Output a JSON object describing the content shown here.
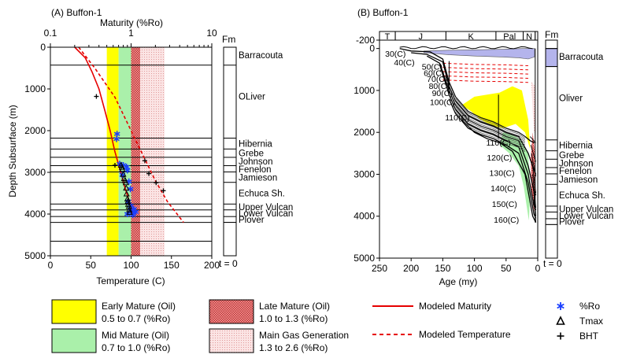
{
  "panel_a": {
    "title": "(A) Buffon-1",
    "top_axis_title": "Maturity  (%Ro)",
    "top_ticks": [
      {
        "label": "0.1",
        "value": 0.1
      },
      {
        "label": "1",
        "value": 1
      },
      {
        "label": "10",
        "value": 10
      }
    ],
    "bottom_axis_title": "Temperature (C)",
    "bottom_ticks": [
      0,
      50,
      100,
      150,
      200
    ],
    "y_axis_title": "Depth Subsurface (m)",
    "y_ticks": [
      0,
      1000,
      2000,
      3000,
      4000,
      5000
    ],
    "fm_header": "Fm",
    "t_label": "t = 0"
  },
  "panel_b": {
    "title": "(B) Buffon-1",
    "x_axis_title": "Age (my)",
    "x_ticks": [
      250,
      200,
      150,
      100,
      50,
      0
    ],
    "y_ticks": [
      -200,
      0,
      1000,
      2000,
      3000,
      4000,
      5000
    ],
    "periods": [
      {
        "label": "T",
        "from": 250,
        "to": 225
      },
      {
        "label": "J",
        "from": 225,
        "to": 145
      },
      {
        "label": "K",
        "from": 145,
        "to": 66
      },
      {
        "label": "Pal",
        "from": 66,
        "to": 23
      },
      {
        "label": "N",
        "from": 23,
        "to": 4
      }
    ],
    "horizon_labels": [
      {
        "label": "30(C)",
        "age": 206,
        "depth": 120,
        "side": "left"
      },
      {
        "label": "40(C)",
        "age": 192,
        "depth": 330,
        "side": "left"
      },
      {
        "label": "50(C)",
        "age": 148,
        "depth": 430,
        "side": "left"
      },
      {
        "label": "60(C)",
        "age": 145,
        "depth": 580,
        "side": "left"
      },
      {
        "label": "70(C)",
        "age": 140,
        "depth": 720,
        "side": "left"
      },
      {
        "label": "80(C)",
        "age": 137,
        "depth": 890,
        "side": "left"
      },
      {
        "label": "90(C)",
        "age": 132,
        "depth": 1060,
        "side": "left"
      },
      {
        "label": "100(C)",
        "age": 128,
        "depth": 1270,
        "side": "left"
      },
      {
        "label": "110(C)",
        "age": 105,
        "depth": 1640,
        "side": "left"
      },
      {
        "label": "110(C)",
        "age": 40,
        "depth": 2240,
        "side": "left"
      },
      {
        "label": "120(C)",
        "age": 38,
        "depth": 2600,
        "side": "left"
      },
      {
        "label": "130(C)",
        "age": 34,
        "depth": 2960,
        "side": "left"
      },
      {
        "label": "140(C)",
        "age": 32,
        "depth": 3330,
        "side": "left"
      },
      {
        "label": "150(C)",
        "age": 30,
        "depth": 3700,
        "side": "left"
      },
      {
        "label": "160(C)",
        "age": 27,
        "depth": 4080,
        "side": "left"
      }
    ],
    "fm_header": "Fm",
    "t_label": "t = 0"
  },
  "formations": [
    {
      "name": "Barracouta",
      "top": 0,
      "base": 430,
      "label_depth": 190
    },
    {
      "name": "OLiver",
      "panel_b_name": "Oliver",
      "top": 430,
      "base": 2180,
      "label_depth": 1180
    },
    {
      "name": "Hibernia",
      "top": 2180,
      "base": 2440,
      "label_depth": 2310
    },
    {
      "name": "Grebe",
      "top": 2440,
      "base": 2640,
      "label_depth": 2540
    },
    {
      "name": "Johnson",
      "top": 2640,
      "base": 2840,
      "label_depth": 2740
    },
    {
      "name": "Fenelon",
      "top": 2840,
      "base": 2990,
      "label_depth": 2920
    },
    {
      "name": "Jamieson",
      "top": 2990,
      "base": 3240,
      "label_depth": 3120
    },
    {
      "name": "Echuca Sh.",
      "top": 3240,
      "base": 3760,
      "label_depth": 3500
    },
    {
      "name": "Upper Vulcan",
      "top": 3760,
      "base": 3900,
      "label_depth": 3830
    },
    {
      "name": "Lower Vulcan",
      "top": 3900,
      "base": 4060,
      "label_depth": 3985
    },
    {
      "name": "Plover",
      "top": 4060,
      "base": 4200,
      "label_depth": 4130
    }
  ],
  "chart_data": [
    {
      "type": "scatter",
      "title": "(A) Buffon-1",
      "xlabel": "Temperature (C)",
      "x2label": "Maturity  (%Ro)",
      "ylabel": "Depth Subsurface (m)",
      "xlim": [
        0,
        200
      ],
      "x2lim": [
        0.1,
        10
      ],
      "x2scale": "log",
      "ylim": [
        5000,
        0
      ],
      "maturity_windows": [
        {
          "name": "Early Mature (Oil)",
          "from": 0.5,
          "to": 0.7,
          "color": "#ffff00"
        },
        {
          "name": "Mid Mature (Oil)",
          "from": 0.7,
          "to": 1.0,
          "color": "#aaf0aa"
        },
        {
          "name": "Late Mature (Oil)",
          "from": 1.0,
          "to": 1.3,
          "color": "#e88080"
        },
        {
          "name": "Main Gas Generation",
          "from": 1.3,
          "to": 2.6,
          "color": "#f7cccc"
        }
      ],
      "series": [
        {
          "name": "Modeled Maturity",
          "style": "solid",
          "color": "#e60000",
          "axis": "maturity",
          "points": [
            [
              0.2,
              0
            ],
            [
              0.27,
              250
            ],
            [
              0.33,
              600
            ],
            [
              0.4,
              1000
            ],
            [
              0.47,
              1500
            ],
            [
              0.55,
              2000
            ],
            [
              0.63,
              2500
            ],
            [
              0.72,
              2900
            ],
            [
              0.82,
              3300
            ],
            [
              0.95,
              3700
            ],
            [
              1.05,
              4000
            ]
          ]
        },
        {
          "name": "Modeled Temperature",
          "style": "dashed",
          "color": "#e60000",
          "axis": "temperature",
          "points": [
            [
              35,
              0
            ],
            [
              55,
              500
            ],
            [
              80,
              1200
            ],
            [
              100,
              2000
            ],
            [
              115,
              2600
            ],
            [
              130,
              3200
            ],
            [
              145,
              3700
            ],
            [
              165,
              4200
            ]
          ]
        },
        {
          "name": "%Ro",
          "marker": "asterisk",
          "color": "#1a3fff",
          "axis": "maturity",
          "points": [
            [
              0.67,
              2080
            ],
            [
              0.66,
              2200
            ],
            [
              0.72,
              2800
            ],
            [
              0.8,
              2830
            ],
            [
              0.88,
              2870
            ],
            [
              0.9,
              2950
            ],
            [
              0.78,
              3060
            ],
            [
              0.94,
              3220
            ],
            [
              0.98,
              3400
            ],
            [
              0.92,
              3700
            ],
            [
              0.99,
              3800
            ],
            [
              1.08,
              3880
            ],
            [
              1.0,
              3920
            ],
            [
              0.9,
              4000
            ],
            [
              1.05,
              4020
            ],
            [
              1.14,
              3950
            ]
          ]
        },
        {
          "name": "Tmax",
          "marker": "triangle",
          "color": "#000000",
          "axis": "maturity",
          "points": [
            [
              0.75,
              2830
            ],
            [
              0.77,
              2880
            ],
            [
              0.78,
              2930
            ],
            [
              0.8,
              3050
            ],
            [
              0.82,
              3150
            ],
            [
              0.84,
              3200
            ],
            [
              0.86,
              3250
            ],
            [
              0.87,
              3380
            ],
            [
              0.88,
              3520
            ],
            [
              0.9,
              3640
            ],
            [
              0.91,
              3700
            ],
            [
              0.92,
              3770
            ],
            [
              0.94,
              3820
            ],
            [
              0.95,
              3900
            ],
            [
              0.96,
              3960
            ]
          ]
        },
        {
          "name": "BHT",
          "marker": "plus",
          "color": "#000000",
          "axis": "temperature",
          "points": [
            [
              57,
              1180
            ],
            [
              80,
              2830
            ],
            [
              117,
              2720
            ],
            [
              122,
              3030
            ],
            [
              131,
              3250
            ],
            [
              140,
              3440
            ]
          ]
        }
      ]
    },
    {
      "type": "area",
      "title": "(B) Buffon-1",
      "xlabel": "Age (my)",
      "xlim": [
        250,
        0
      ],
      "ylim": [
        5000,
        -200
      ],
      "series": [
        {
          "name": "Early Mature (Oil)",
          "color": "#ffff00",
          "polygon": [
            [
              100,
              1150
            ],
            [
              80,
              1100
            ],
            [
              60,
              1050
            ],
            [
              40,
              900
            ],
            [
              25,
              1000
            ],
            [
              15,
              1700
            ],
            [
              12,
              2400
            ],
            [
              20,
              2000
            ],
            [
              35,
              1800
            ],
            [
              55,
              1900
            ],
            [
              70,
              1850
            ],
            [
              90,
              1700
            ],
            [
              105,
              1500
            ],
            [
              120,
              1350
            ]
          ]
        },
        {
          "name": "Mid Mature (Oil)",
          "color": "#aaf0aa",
          "polygon": [
            [
              55,
              2000
            ],
            [
              40,
              2050
            ],
            [
              25,
              2200
            ],
            [
              15,
              2500
            ],
            [
              12,
              3500
            ],
            [
              14,
              4100
            ],
            [
              22,
              3300
            ],
            [
              30,
              2800
            ],
            [
              45,
              2500
            ],
            [
              60,
              2300
            ]
          ]
        },
        {
          "name": "Late Mature (Oil)",
          "color": "#e88080",
          "polygon": [
            [
              8,
              2000
            ],
            [
              5,
              2400
            ],
            [
              4,
              3600
            ],
            [
              6,
              3900
            ],
            [
              10,
              3400
            ],
            [
              11,
              2600
            ]
          ]
        },
        {
          "name": "Main Gas Generation",
          "color": "#f7cccc",
          "polygon": [
            [
              10,
              800
            ],
            [
              4,
              900
            ],
            [
              3,
              2000
            ],
            [
              6,
              2000
            ],
            [
              8,
              1500
            ]
          ]
        },
        {
          "name": "Barracouta (blue)",
          "color": "#b4b4ec",
          "polygon": [
            [
              180,
              100
            ],
            [
              140,
              150
            ],
            [
              100,
              180
            ],
            [
              60,
              200
            ],
            [
              30,
              220
            ],
            [
              15,
              250
            ],
            [
              5,
              200
            ],
            [
              5,
              0
            ],
            [
              25,
              0
            ],
            [
              60,
              20
            ],
            [
              100,
              30
            ],
            [
              140,
              40
            ],
            [
              180,
              60
            ]
          ]
        }
      ],
      "burial_curves": [
        [
          [
            218,
            0
          ],
          [
            200,
            60
          ],
          [
            170,
            80
          ],
          [
            150,
            250
          ],
          [
            140,
            800
          ],
          [
            130,
            1150
          ],
          [
            110,
            1500
          ],
          [
            90,
            1650
          ],
          [
            70,
            1750
          ],
          [
            50,
            1900
          ],
          [
            30,
            2000
          ],
          [
            20,
            2100
          ],
          [
            12,
            2200
          ],
          [
            5,
            2250
          ]
        ],
        [
          [
            200,
            100
          ],
          [
            175,
            140
          ],
          [
            150,
            320
          ],
          [
            140,
            900
          ],
          [
            130,
            1250
          ],
          [
            110,
            1600
          ],
          [
            90,
            1750
          ],
          [
            70,
            1850
          ],
          [
            50,
            2000
          ],
          [
            30,
            2100
          ],
          [
            15,
            2500
          ],
          [
            6,
            2900
          ],
          [
            3,
            3000
          ]
        ],
        [
          [
            175,
            180
          ],
          [
            155,
            350
          ],
          [
            140,
            1000
          ],
          [
            130,
            1350
          ],
          [
            110,
            1700
          ],
          [
            90,
            1850
          ],
          [
            70,
            1950
          ],
          [
            50,
            2100
          ],
          [
            30,
            2200
          ],
          [
            15,
            2800
          ],
          [
            6,
            3400
          ],
          [
            3,
            3500
          ]
        ],
        [
          [
            155,
            380
          ],
          [
            140,
            1100
          ],
          [
            130,
            1450
          ],
          [
            110,
            1800
          ],
          [
            90,
            1950
          ],
          [
            70,
            2050
          ],
          [
            50,
            2200
          ],
          [
            30,
            2350
          ],
          [
            15,
            3000
          ],
          [
            6,
            3750
          ],
          [
            3,
            3850
          ]
        ],
        [
          [
            140,
            1200
          ],
          [
            130,
            1550
          ],
          [
            110,
            1900
          ],
          [
            90,
            2050
          ],
          [
            70,
            2150
          ],
          [
            50,
            2300
          ],
          [
            30,
            2500
          ],
          [
            15,
            3200
          ],
          [
            6,
            3950
          ],
          [
            3,
            4050
          ]
        ],
        [
          [
            120,
            1700
          ],
          [
            100,
            2000
          ],
          [
            80,
            2150
          ],
          [
            60,
            2250
          ],
          [
            40,
            2450
          ],
          [
            20,
            3000
          ],
          [
            8,
            4000
          ],
          [
            3,
            4150
          ]
        ]
      ]
    }
  ],
  "legend": {
    "boxes": [
      {
        "title": "Early Mature (Oil)",
        "range": "0.5 to 0.7 (%Ro)",
        "fill": "#ffff00",
        "pattern": false
      },
      {
        "title": "Mid Mature (Oil)",
        "range": "0.7 to 1.0 (%Ro)",
        "fill": "#aaf0aa",
        "pattern": false
      },
      {
        "title": "Late Mature (Oil)",
        "range": "1.0 to 1.3 (%Ro)",
        "fill": "#e88080",
        "pattern": true
      },
      {
        "title": "Main Gas Generation",
        "range": "1.3 to 2.6 (%Ro)",
        "fill": "#f7cccc",
        "pattern": true
      }
    ],
    "lines": [
      {
        "label": "Modeled Maturity",
        "style": "solid",
        "color": "#e60000"
      },
      {
        "label": "Modeled Temperature",
        "style": "dashed",
        "color": "#e60000"
      }
    ],
    "markers": [
      {
        "label": "%Ro",
        "symbol": "asterisk",
        "color": "#1a3fff"
      },
      {
        "label": "Tmax",
        "symbol": "triangle",
        "color": "#000000"
      },
      {
        "label": "BHT",
        "symbol": "plus",
        "color": "#000000"
      }
    ]
  }
}
